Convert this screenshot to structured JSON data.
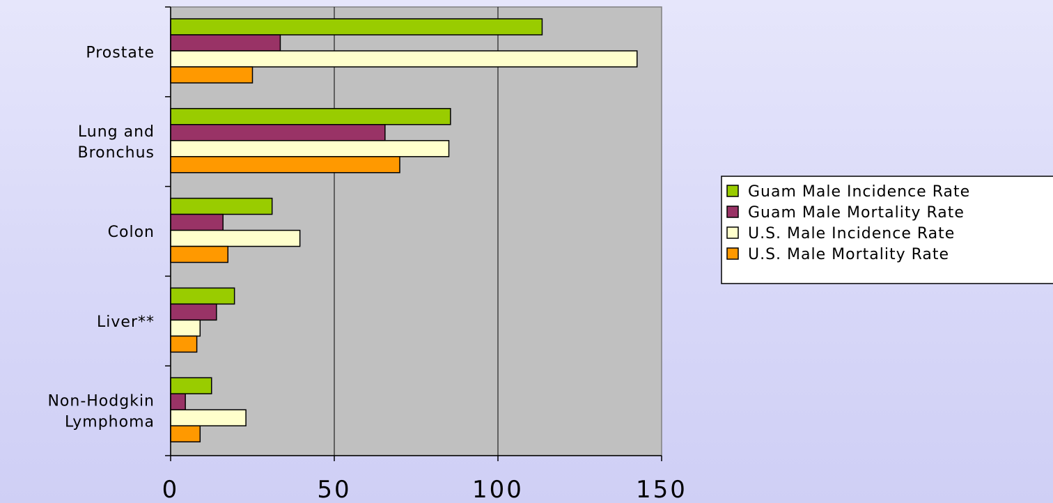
{
  "chart_data": {
    "type": "bar",
    "orientation": "horizontal",
    "categories": [
      [
        "Prostate"
      ],
      [
        "Lung and",
        "Bronchus"
      ],
      [
        "Colon"
      ],
      [
        "Liver**"
      ],
      [
        "Non-Hodgkin",
        "Lymphoma"
      ]
    ],
    "series": [
      {
        "name": "Guam Male Incidence Rate",
        "color": "#99cc00",
        "values": [
          113.5,
          85.5,
          31,
          19.5,
          12.5
        ]
      },
      {
        "name": "Guam Male Mortality Rate",
        "color": "#993366",
        "values": [
          33.5,
          65.5,
          16,
          14,
          4.5
        ]
      },
      {
        "name": "U.S. Male Incidence Rate",
        "color": "#ffffcc",
        "values": [
          142.5,
          85,
          39.5,
          9,
          23
        ]
      },
      {
        "name": "U.S. Male Mortality Rate",
        "color": "#ff9900",
        "values": [
          25,
          70,
          17.5,
          8,
          9
        ]
      }
    ],
    "xlim": [
      0,
      150
    ],
    "x_ticks": [
      "0",
      "50",
      "100",
      "150"
    ],
    "title": "",
    "xlabel": "",
    "ylabel": "",
    "grid": "vertical",
    "plot_background": "#c0c0c0",
    "legend_position": "right"
  }
}
